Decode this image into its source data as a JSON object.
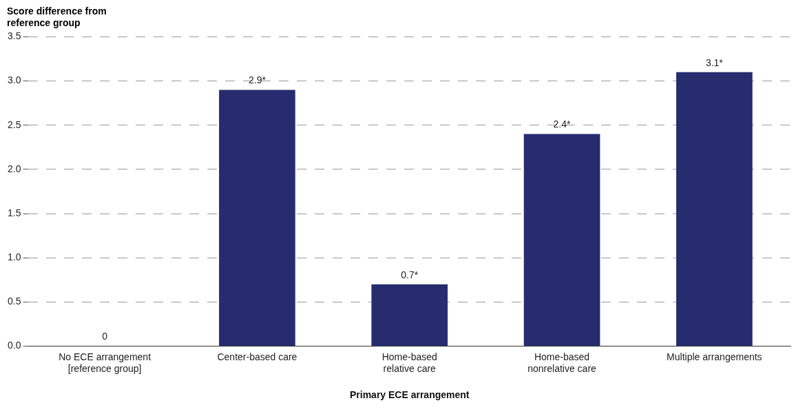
{
  "chart_data": {
    "type": "bar",
    "ylabel": "Score difference from\nreference group",
    "xlabel": "Primary ECE arrangement",
    "categories": [
      "No ECE arrangement\n[reference group]",
      "Center-based care",
      "Home-based\nrelative care",
      "Home-based\nnonrelative care",
      "Multiple arrangements"
    ],
    "values": [
      0,
      2.9,
      0.7,
      2.4,
      3.1
    ],
    "value_labels": [
      "0",
      "2.9*",
      "0.7*",
      "2.4*",
      "3.1*"
    ],
    "color": "#262c6e",
    "ylim": [
      0,
      3.5
    ],
    "yticks": [
      {
        "value": 0,
        "label": "0.0"
      },
      {
        "value": 0.5,
        "label": "0.5"
      },
      {
        "value": 1,
        "label": "1.0"
      },
      {
        "value": 1.5,
        "label": "1.5"
      },
      {
        "value": 2,
        "label": "2.0"
      },
      {
        "value": 2.5,
        "label": "2.5"
      },
      {
        "value": 3,
        "label": "3.0"
      },
      {
        "value": 3.5,
        "label": "3.5"
      }
    ],
    "grid": "y",
    "legend": false
  }
}
